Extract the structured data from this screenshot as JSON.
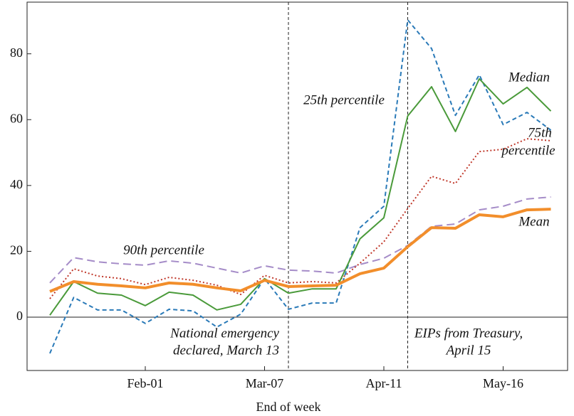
{
  "chart_data": {
    "type": "line",
    "x_label": "End of week",
    "categories": [
      null,
      null,
      null,
      null,
      "Feb-01",
      null,
      null,
      null,
      null,
      "Mar-07",
      null,
      null,
      null,
      null,
      "Apr-11",
      null,
      null,
      null,
      null,
      "May-16",
      null,
      null
    ],
    "ylim": [
      -16.2,
      95.7
    ],
    "yticks": [
      0,
      20,
      40,
      60,
      80
    ],
    "zero_line": true,
    "vlines": [
      10,
      15
    ],
    "annotations": [
      "Median",
      "25th percentile",
      "75th",
      "percentile",
      "Mean",
      "90th percentile",
      "National emergency",
      "declared, March 13",
      "EIPs from Treasury,",
      "April 15"
    ],
    "series": [
      {
        "color": "#a58cc8",
        "linestyle": "longdash",
        "width": 2,
        "values": [
          10.4,
          18.1,
          16.8,
          16.2,
          15.8,
          17.1,
          16.4,
          14.9,
          13.4,
          15.6,
          14.3,
          14,
          13.4,
          16,
          17.9,
          21.8,
          27.6,
          28.3,
          32.6,
          33.7,
          35.9,
          36.5
        ]
      },
      {
        "color": "#c0392b",
        "linestyle": "dotted",
        "width": 2,
        "values": [
          5.6,
          14.7,
          12.5,
          11.7,
          9.9,
          12.1,
          11.2,
          9.7,
          6.9,
          12.7,
          10.4,
          10.8,
          10.4,
          16.4,
          22.9,
          33,
          42.8,
          40.6,
          50.3,
          51,
          54.2,
          53.6
        ]
      },
      {
        "color": "#2a7ab8",
        "linestyle": "dashed",
        "width": 2,
        "values": [
          -11,
          6,
          2.2,
          2.2,
          -1.9,
          2.4,
          1.9,
          -3,
          0.9,
          11.7,
          2.4,
          4.3,
          4.3,
          27.2,
          33.7,
          90.3,
          81.6,
          61.3,
          73.6,
          58.5,
          62.2,
          56.8
        ]
      },
      {
        "color": "#4a9a3a",
        "linestyle": "solid",
        "width": 2,
        "values": [
          0.6,
          10.8,
          7.3,
          6.7,
          3.5,
          7.6,
          6.7,
          2.2,
          3.9,
          11.7,
          7.3,
          8.6,
          8.6,
          23.8,
          30.2,
          61.1,
          70,
          56.4,
          72.4,
          64.8,
          69.8,
          62.6
        ]
      },
      {
        "color": "#f28e2b",
        "linestyle": "solid",
        "width": 4,
        "values": [
          7.8,
          10.8,
          10,
          9.5,
          8.9,
          10.4,
          10,
          8.9,
          8,
          11.2,
          9.3,
          9.5,
          9.7,
          13.2,
          14.9,
          21.4,
          27.2,
          27,
          31.1,
          30.5,
          32.6,
          32.8
        ]
      }
    ]
  }
}
